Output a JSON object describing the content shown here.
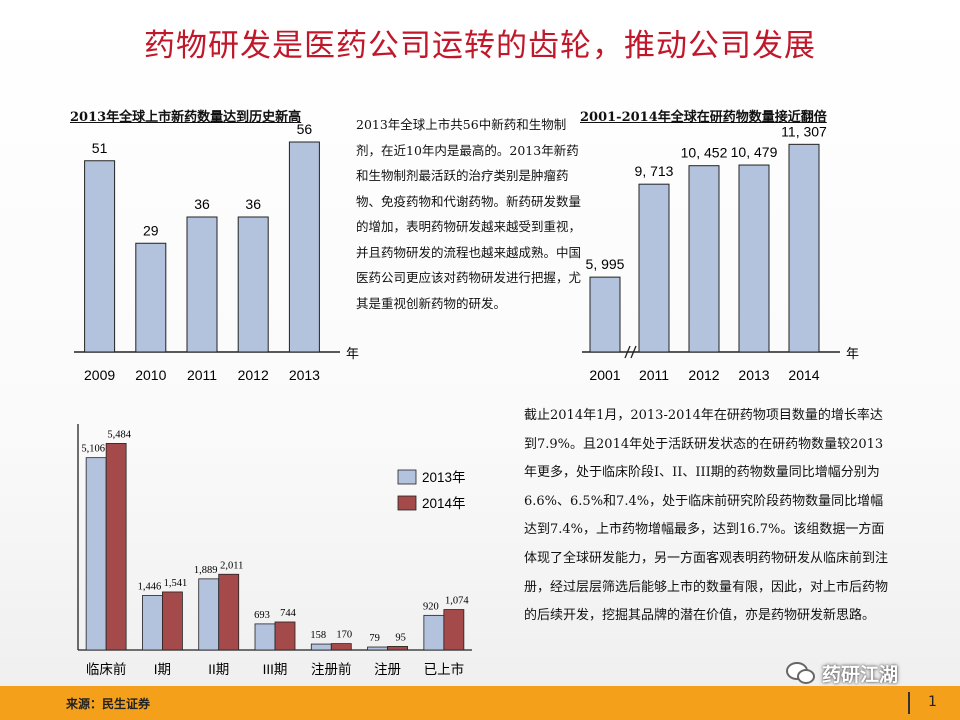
{
  "page": {
    "title": "药物研发是医药公司运转的齿轮，推动公司发展",
    "source": "来源：民生证券",
    "page_number": "1",
    "watermark": "药研江湖"
  },
  "colors": {
    "bar_blue": "#b4c3dd",
    "bar_red": "#a54a4a",
    "title_red": "#c0182a",
    "footer": "#f5a01a"
  },
  "text": {
    "para1": "2013年全球上市共56中新药和生物制剂，在近10年内是最高的。2013年新药和生物制剂最活跃的治疗类别是肿瘤药物、免疫药物和代谢药物。新药研发数量的增加，表明药物研发越来越受到重视，并且药物研发的流程也越来越成熟。中国医药公司更应该对药物研发进行把握，尤其是重视创新药物的研发。",
    "para2": "截止2014年1月，2013-2014年在研药物项目数量的增长率达到7.9%。且2014年处于活跃研发状态的在研药物数量较2013年更多，处于临床阶段I、II、III期的药物数量同比增幅分别为6.6%、6.5%和7.4%，处于临床前研究阶段药物数量同比增幅达到7.4%，上市药物增幅最多，达到16.7%。该组数据一方面体现了全球研发能力，另一方面客观表明药物研发从临床前到注册，经过层层筛选后能够上市的数量有限，因此，对上市后药物的后续开发，挖掘其品牌的潜在价值，亦是药物研发新思路。"
  },
  "chart_data": [
    {
      "type": "bar",
      "title": "2013年全球上市新药数量达到历史新高",
      "xlabel": "年",
      "categories": [
        "2009",
        "2010",
        "2011",
        "2012",
        "2013"
      ],
      "values": [
        51,
        29,
        36,
        36,
        56
      ],
      "value_labels": [
        "51",
        "29",
        "36",
        "36",
        "56"
      ],
      "ylim": [
        0,
        60
      ],
      "grid": false
    },
    {
      "type": "bar",
      "title": "2001-2014年全球在研药物数量接近翻倍",
      "xlabel": "年",
      "categories": [
        "2001",
        "2011",
        "2012",
        "2013",
        "2014"
      ],
      "values": [
        5995,
        9713,
        10452,
        10479,
        11307
      ],
      "value_labels": [
        "5, 995",
        "9, 713",
        "10, 452",
        "10, 479",
        "11, 307"
      ],
      "axis_break": true,
      "grid": false
    },
    {
      "type": "bar",
      "categories": [
        "临床前",
        "I期",
        "II期",
        "III期",
        "注册前",
        "注册",
        "已上市"
      ],
      "series": [
        {
          "name": "2013年",
          "values": [
            5106,
            1446,
            1889,
            693,
            158,
            79,
            920
          ],
          "value_labels": [
            "5,106",
            "1,446",
            "1,889",
            "693",
            "158",
            "79",
            "920"
          ]
        },
        {
          "name": "2014年",
          "values": [
            5484,
            1541,
            2011,
            744,
            170,
            95,
            1074
          ],
          "value_labels": [
            "5,484",
            "1,541",
            "2,011",
            "744",
            "170",
            "95",
            "1,074"
          ]
        }
      ],
      "ylim": [
        0,
        6000
      ],
      "legend": "right",
      "grid": false
    }
  ]
}
